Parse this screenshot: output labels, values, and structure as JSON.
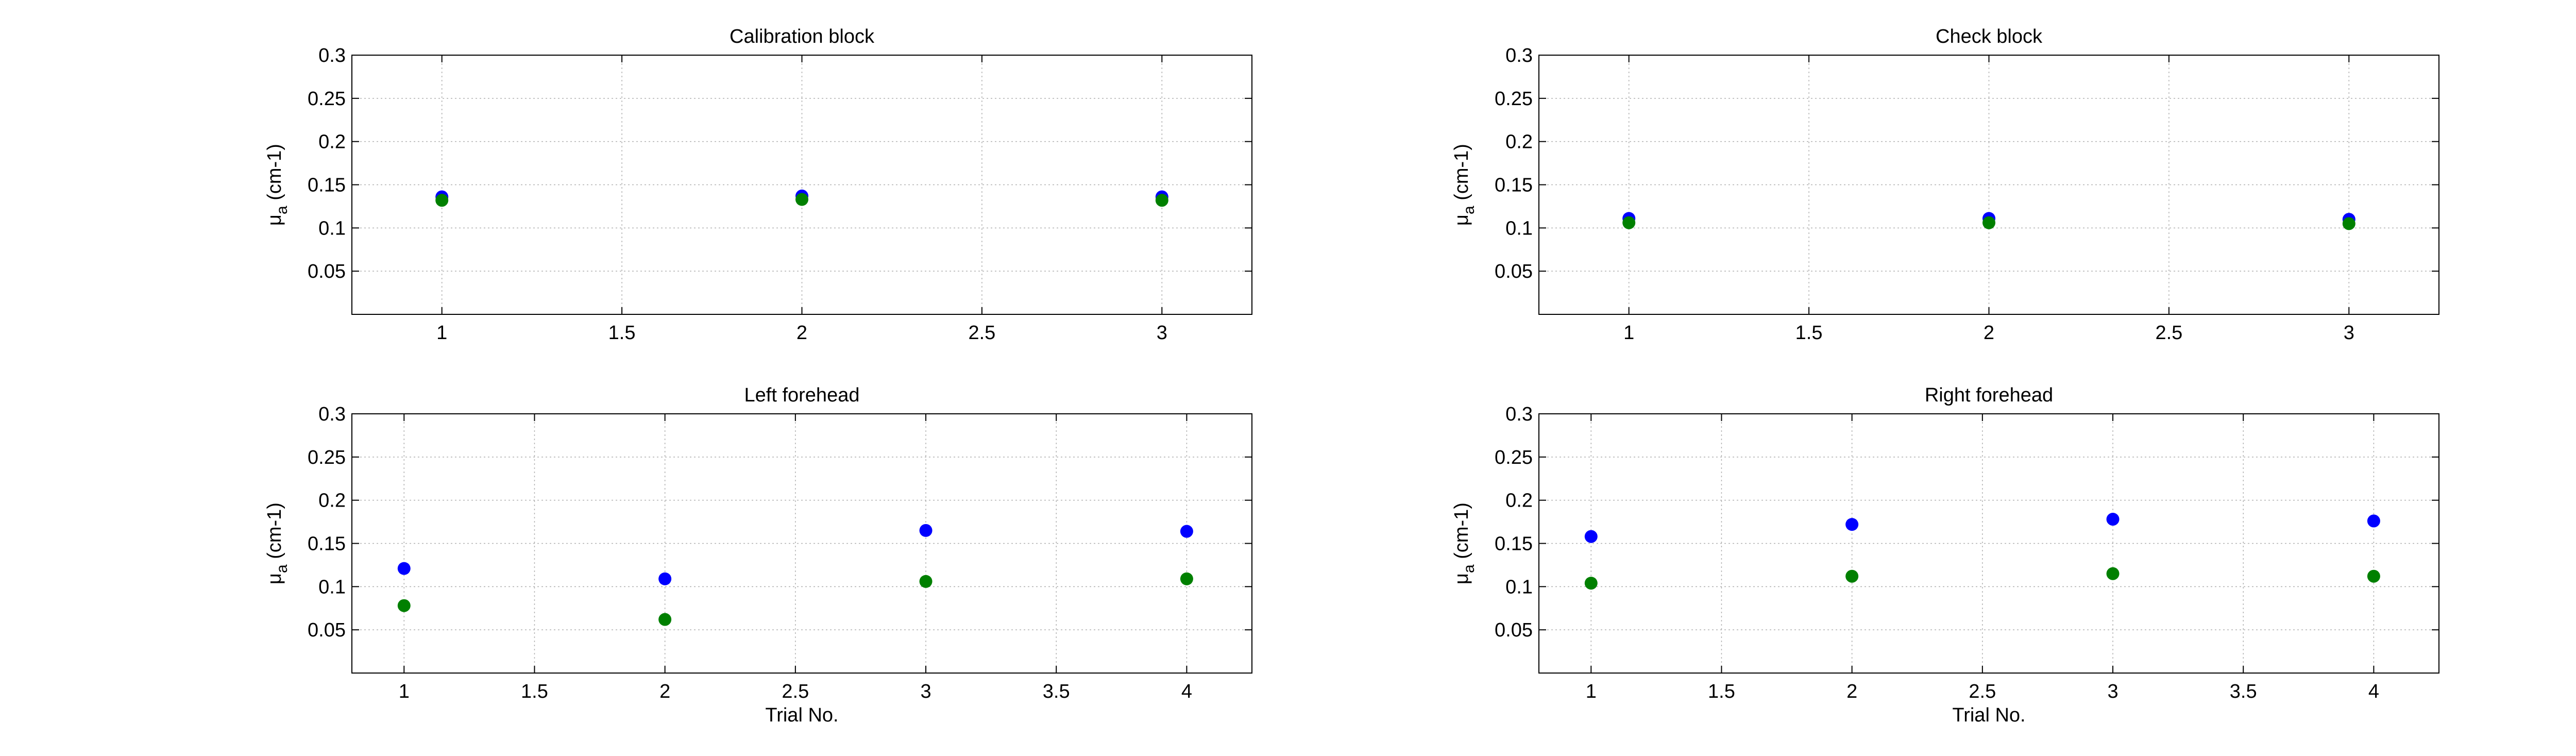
{
  "figure": {
    "background": "#ffffff",
    "series_colors": [
      "#0000ff",
      "#008000"
    ]
  },
  "chart_data": [
    {
      "type": "scatter",
      "title": "Calibration block",
      "xlabel": "",
      "ylabel": "μa (cm-1)",
      "ylabel_main": "μ",
      "ylabel_sub": "a",
      "ylabel_rest": " (cm-1)",
      "xlim": [
        0.75,
        3.25
      ],
      "ylim": [
        0,
        0.3
      ],
      "xticks": [
        1,
        1.5,
        2,
        2.5,
        3
      ],
      "xtick_labels": [
        "1",
        "1.5",
        "2",
        "2.5",
        "3"
      ],
      "yticks": [
        0.05,
        0.1,
        0.15,
        0.2,
        0.25,
        0.3
      ],
      "ytick_labels": [
        "0.05",
        "0.1",
        "0.15",
        "0.2",
        "0.25",
        "0.3"
      ],
      "grid": true,
      "series": [
        {
          "color": "#0000ff",
          "x": [
            1,
            2,
            3
          ],
          "y": [
            0.136,
            0.137,
            0.136
          ]
        },
        {
          "color": "#008000",
          "x": [
            1,
            2,
            3
          ],
          "y": [
            0.132,
            0.133,
            0.132
          ]
        }
      ]
    },
    {
      "type": "scatter",
      "title": "Check block",
      "xlabel": "",
      "ylabel": "μa (cm-1)",
      "ylabel_main": "μ",
      "ylabel_sub": "a",
      "ylabel_rest": " (cm-1)",
      "xlim": [
        0.75,
        3.25
      ],
      "ylim": [
        0,
        0.3
      ],
      "xticks": [
        1,
        1.5,
        2,
        2.5,
        3
      ],
      "xtick_labels": [
        "1",
        "1.5",
        "2",
        "2.5",
        "3"
      ],
      "yticks": [
        0.05,
        0.1,
        0.15,
        0.2,
        0.25,
        0.3
      ],
      "ytick_labels": [
        "0.05",
        "0.1",
        "0.15",
        "0.2",
        "0.25",
        "0.3"
      ],
      "grid": true,
      "series": [
        {
          "color": "#0000ff",
          "x": [
            1,
            2,
            3
          ],
          "y": [
            0.111,
            0.111,
            0.11
          ]
        },
        {
          "color": "#008000",
          "x": [
            1,
            2,
            3
          ],
          "y": [
            0.106,
            0.106,
            0.105
          ]
        }
      ]
    },
    {
      "type": "scatter",
      "title": "Left forehead",
      "xlabel": "Trial No.",
      "ylabel": "μa (cm-1)",
      "ylabel_main": "μ",
      "ylabel_sub": "a",
      "ylabel_rest": " (cm-1)",
      "xlim": [
        0.8,
        4.25
      ],
      "ylim": [
        0,
        0.3
      ],
      "xticks": [
        1,
        1.5,
        2,
        2.5,
        3,
        3.5,
        4
      ],
      "xtick_labels": [
        "1",
        "1.5",
        "2",
        "2.5",
        "3",
        "3.5",
        "4"
      ],
      "yticks": [
        0.05,
        0.1,
        0.15,
        0.2,
        0.25,
        0.3
      ],
      "ytick_labels": [
        "0.05",
        "0.1",
        "0.15",
        "0.2",
        "0.25",
        "0.3"
      ],
      "grid": true,
      "series": [
        {
          "color": "#0000ff",
          "x": [
            1,
            2,
            3,
            4
          ],
          "y": [
            0.121,
            0.109,
            0.165,
            0.164
          ]
        },
        {
          "color": "#008000",
          "x": [
            1,
            2,
            3,
            4
          ],
          "y": [
            0.078,
            0.062,
            0.106,
            0.109
          ]
        }
      ]
    },
    {
      "type": "scatter",
      "title": "Right forehead",
      "xlabel": "Trial No.",
      "ylabel": "μa (cm-1)",
      "ylabel_main": "μ",
      "ylabel_sub": "a",
      "ylabel_rest": " (cm-1)",
      "xlim": [
        0.8,
        4.25
      ],
      "ylim": [
        0,
        0.3
      ],
      "xticks": [
        1,
        1.5,
        2,
        2.5,
        3,
        3.5,
        4
      ],
      "xtick_labels": [
        "1",
        "1.5",
        "2",
        "2.5",
        "3",
        "3.5",
        "4"
      ],
      "yticks": [
        0.05,
        0.1,
        0.15,
        0.2,
        0.25,
        0.3
      ],
      "ytick_labels": [
        "0.05",
        "0.1",
        "0.15",
        "0.2",
        "0.25",
        "0.3"
      ],
      "grid": true,
      "series": [
        {
          "color": "#0000ff",
          "x": [
            1,
            2,
            3,
            4
          ],
          "y": [
            0.158,
            0.172,
            0.178,
            0.176
          ]
        },
        {
          "color": "#008000",
          "x": [
            1,
            2,
            3,
            4
          ],
          "y": [
            0.104,
            0.112,
            0.115,
            0.112
          ]
        }
      ]
    }
  ]
}
